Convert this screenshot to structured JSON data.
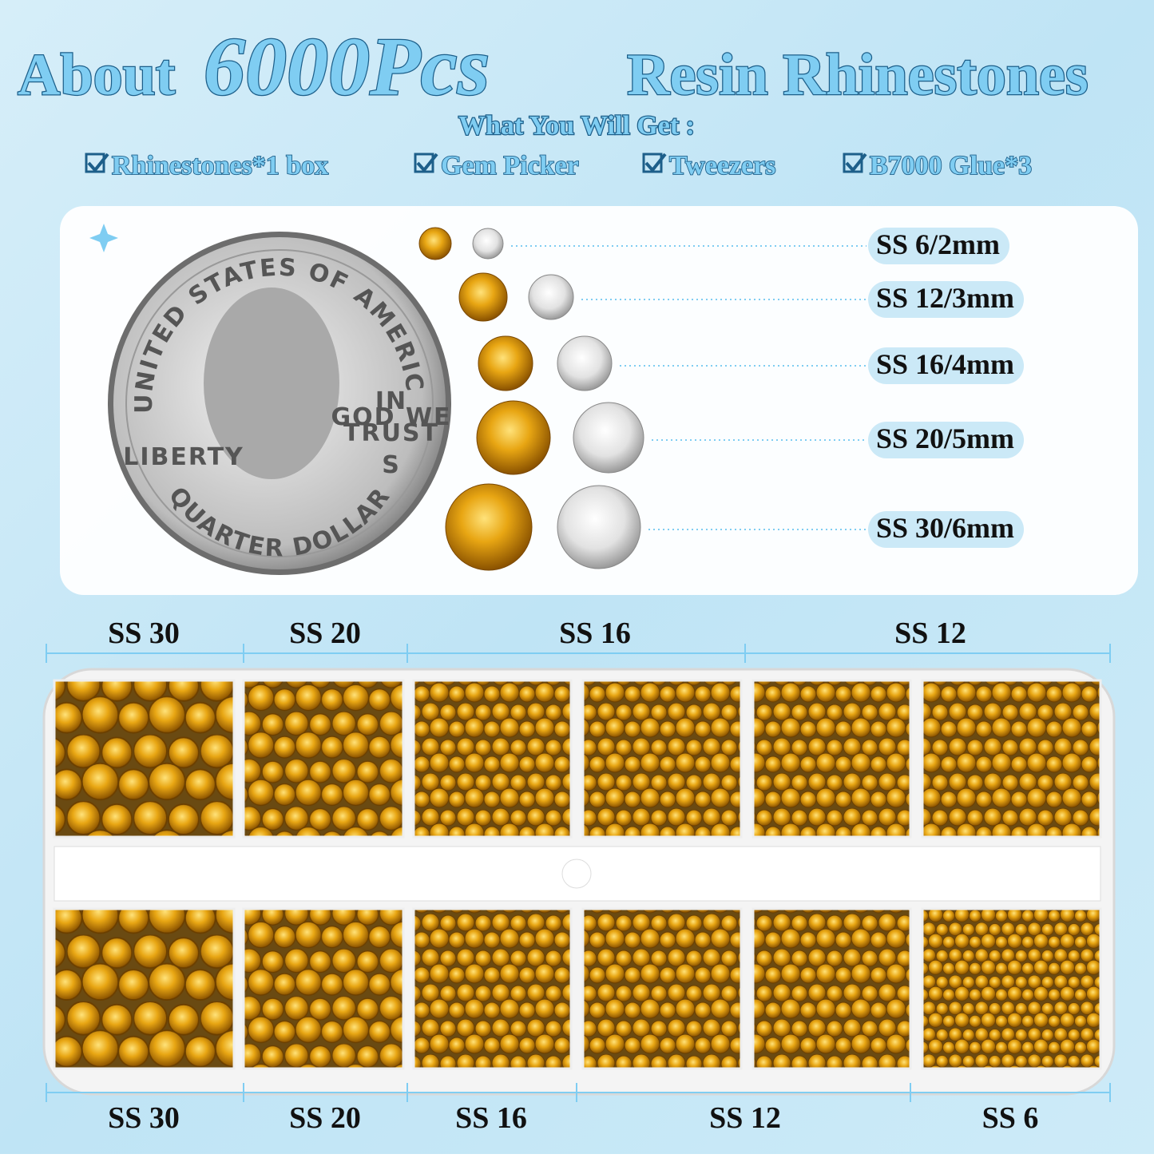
{
  "header": {
    "title": {
      "lead": "About",
      "count": "6000Pcs",
      "product": "Resin Rhinestones"
    },
    "subtitle": "What You Will Get :",
    "items": [
      "Rhinestones*1 box",
      "Gem Picker",
      "Tweezers",
      "B7000 Glue*3"
    ]
  },
  "coin": {
    "top": "UNITED STATES OF AMERICA",
    "motto": [
      "IN",
      "GOD WE",
      "TRUST"
    ],
    "left": "LIBERTY",
    "bottom": "QUARTER DOLLAR",
    "mint": "S"
  },
  "sizes": [
    "SS 6/2mm",
    "SS 12/3mm",
    "SS 16/4mm",
    "SS 20/5mm",
    "SS 30/6mm"
  ],
  "tray": {
    "top_labels": [
      "SS 30",
      "SS 20",
      "SS 16",
      "SS 12"
    ],
    "bottom_labels": [
      "SS 30",
      "SS 20",
      "SS 16",
      "SS 12",
      "SS 6"
    ]
  }
}
